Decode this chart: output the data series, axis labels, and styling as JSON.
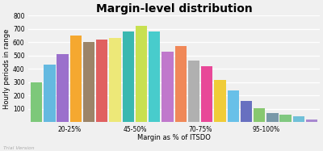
{
  "title": "Margin-level distribution",
  "xlabel": "Margin as % of ITSDO",
  "ylabel": "Hourly periods in range",
  "ylim": [
    0,
    800
  ],
  "yticks": [
    0,
    100,
    200,
    300,
    400,
    500,
    600,
    700,
    800
  ],
  "xtick_labels": [
    "20-25%",
    "45-50%",
    "70-75%",
    "95-100%"
  ],
  "xtick_positions": [
    2.5,
    7.5,
    12.5,
    17.5
  ],
  "bars": [
    {
      "value": 300,
      "color": "#7dc87a"
    },
    {
      "value": 430,
      "color": "#64b9e0"
    },
    {
      "value": 510,
      "color": "#9b70cc"
    },
    {
      "value": 650,
      "color": "#f5a830"
    },
    {
      "value": 600,
      "color": "#9c8468"
    },
    {
      "value": 620,
      "color": "#e06060"
    },
    {
      "value": 635,
      "color": "#ede878"
    },
    {
      "value": 680,
      "color": "#3ab8b0"
    },
    {
      "value": 725,
      "color": "#c8e050"
    },
    {
      "value": 680,
      "color": "#48cccc"
    },
    {
      "value": 530,
      "color": "#c078cc"
    },
    {
      "value": 570,
      "color": "#f08858"
    },
    {
      "value": 460,
      "color": "#b0b0b0"
    },
    {
      "value": 420,
      "color": "#e84898"
    },
    {
      "value": 315,
      "color": "#f0cc38"
    },
    {
      "value": 240,
      "color": "#68c0e8"
    },
    {
      "value": 158,
      "color": "#6870c0"
    },
    {
      "value": 105,
      "color": "#88c870"
    },
    {
      "value": 65,
      "color": "#7898a8"
    },
    {
      "value": 58,
      "color": "#80c880"
    },
    {
      "value": 45,
      "color": "#70c0d8"
    },
    {
      "value": 18,
      "color": "#a888d0"
    }
  ],
  "background_color": "#f0f0f0",
  "grid_color": "#ffffff",
  "title_fontsize": 10,
  "axis_fontsize": 6,
  "tick_fontsize": 5.5,
  "trial_text": "Trial Version"
}
